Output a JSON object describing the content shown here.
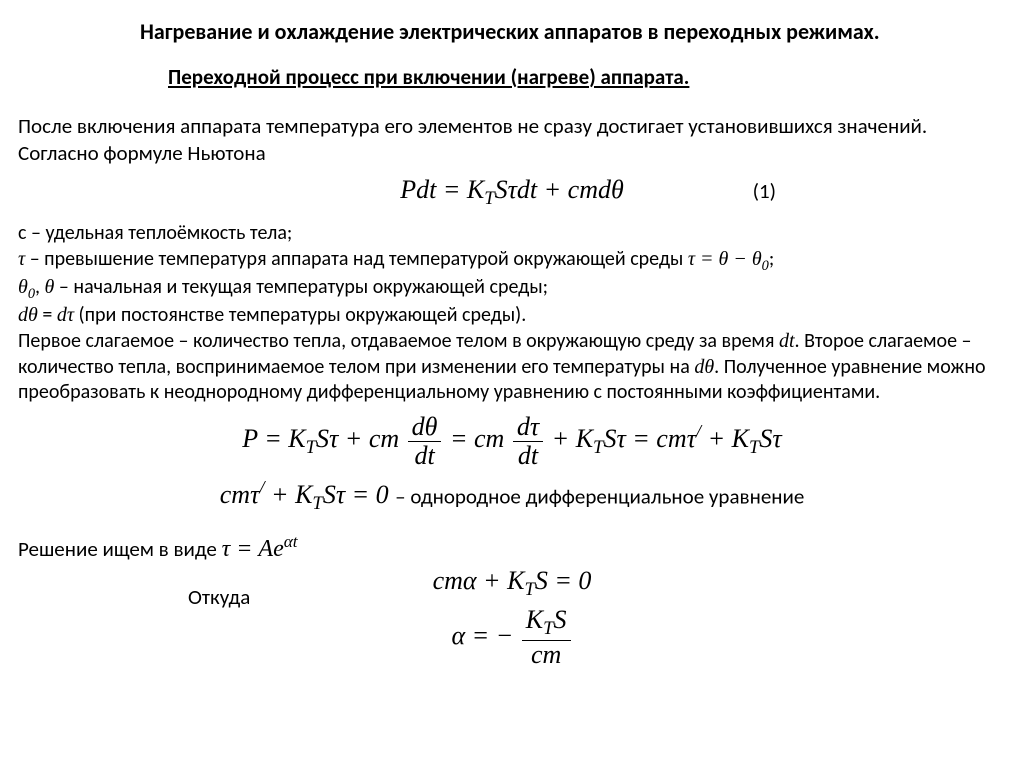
{
  "title": "Нагревание и охлаждение электрических аппаратов в переходных режимах.",
  "subtitle": "Переходной процесс при включении (нагреве) аппарата.",
  "intro": "После включения аппарата температура его элементов не сразу достигает установившихся значений. Согласно формуле Ньютона",
  "eq1_num": "(1)",
  "defs_l1_pre": "с – ",
  "defs_l1": "удельная теплоёмкость тела;",
  "defs_l2": " – превышение температуря аппарата над температурой окружающей среды ",
  "defs_l3": " – начальная и текущая температуры окружающей среды;",
  "defs_l4": " (при постоянстве температуры окружающей среды).",
  "defs_l5a": "Первое слагаемое – количество тепла, отдаваемое телом в окружающую среду за время ",
  "defs_l5b": ". Второе слагаемое – количество тепла, воспринимаемое телом при изменении его температуры на ",
  "defs_l5c": ".   Полученное уравнение можно преобразовать к неоднородному дифференциальному уравнению с постоянными коэффициентами.",
  "hom_tail": " – однородное дифференциальное уравнение",
  "sol_text_pre": "Решение ищем в виде ",
  "whence": "Откуда",
  "math": {
    "eq1_lhs": "Pdt",
    "eq1_rhs1": "K",
    "eq1_rhs1_sub": "T",
    "eq1_rhs2": "Sτdt + cmdθ",
    "tau": "τ",
    "theta": "θ",
    "theta0_sub": "0",
    "dtheta": "dθ",
    "dtau": "dτ",
    "dt": "dt",
    "tau_rel": "τ = θ − θ",
    "P": "P",
    "eq": " = ",
    "plus": " + ",
    "KT": "K",
    "T": "T",
    "S": "S",
    "tau2": "τ",
    "cm": "cm",
    "frac_dth": "dθ",
    "frac_dtau": "dτ",
    "frac_dt": "dt",
    "cmtau": "cmτ",
    "prime": "/",
    "zero": " = 0",
    "Ae": "τ = Ae",
    "alpha_t": "αt",
    "cmalpha": "cmα + K",
    "S0": "S = 0",
    "alpha_lhs": "α = −",
    "num_KTS": "K",
    "num_S": "S",
    "den_cm": "cm"
  }
}
